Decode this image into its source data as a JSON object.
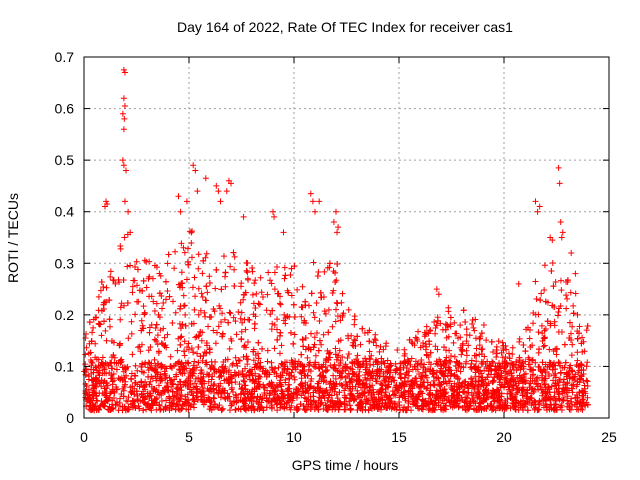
{
  "chart_data": {
    "type": "scatter",
    "title": "Day 164 of 2022, Rate Of TEC Index for receiver cas1",
    "xlabel": "GPS time / hours",
    "ylabel": "ROTI / TECUs",
    "xlim": [
      0,
      25
    ],
    "ylim": [
      0,
      0.7
    ],
    "xticks": [
      0,
      5,
      10,
      15,
      20,
      25
    ],
    "xtick_labels": [
      "0",
      "5",
      "10",
      "15",
      "20",
      "25"
    ],
    "yticks": [
      0,
      0.1,
      0.2,
      0.3,
      0.4,
      0.5,
      0.6,
      0.7
    ],
    "ytick_labels": [
      "0",
      "0.1",
      "0.2",
      "0.3",
      "0.4",
      "0.5",
      "0.6",
      "0.7"
    ],
    "grid": true,
    "marker": "plus",
    "color": "#ff0000",
    "envelope": {
      "x": [
        0,
        0.5,
        1,
        1.5,
        2,
        2.5,
        3,
        3.5,
        4,
        4.5,
        5,
        5.5,
        6,
        6.5,
        7,
        7.5,
        8,
        8.5,
        9,
        9.5,
        10,
        10.5,
        11,
        11.5,
        12,
        12.5,
        13,
        13.5,
        14,
        14.5,
        15,
        15.5,
        16,
        16.5,
        17,
        17.5,
        18,
        18.5,
        19,
        19.5,
        20,
        20.5,
        21,
        21.5,
        22,
        22.5,
        23,
        23.5,
        24
      ],
      "y": [
        0.14,
        0.2,
        0.28,
        0.3,
        0.36,
        0.3,
        0.3,
        0.28,
        0.3,
        0.34,
        0.36,
        0.32,
        0.3,
        0.3,
        0.32,
        0.3,
        0.28,
        0.26,
        0.28,
        0.28,
        0.3,
        0.28,
        0.3,
        0.28,
        0.3,
        0.2,
        0.18,
        0.16,
        0.15,
        0.13,
        0.12,
        0.14,
        0.16,
        0.18,
        0.2,
        0.2,
        0.2,
        0.18,
        0.17,
        0.14,
        0.13,
        0.12,
        0.16,
        0.26,
        0.3,
        0.28,
        0.26,
        0.22,
        0.18
      ]
    },
    "outliers": [
      {
        "x": 1.0,
        "y": 0.41
      },
      {
        "x": 1.05,
        "y": 0.42
      },
      {
        "x": 1.1,
        "y": 0.415
      },
      {
        "x": 1.9,
        "y": 0.675
      },
      {
        "x": 1.95,
        "y": 0.67
      },
      {
        "x": 1.9,
        "y": 0.62
      },
      {
        "x": 1.95,
        "y": 0.605
      },
      {
        "x": 1.85,
        "y": 0.59
      },
      {
        "x": 1.92,
        "y": 0.58
      },
      {
        "x": 1.9,
        "y": 0.56
      },
      {
        "x": 1.85,
        "y": 0.5
      },
      {
        "x": 1.9,
        "y": 0.49
      },
      {
        "x": 2.0,
        "y": 0.48
      },
      {
        "x": 1.95,
        "y": 0.42
      },
      {
        "x": 2.1,
        "y": 0.4
      },
      {
        "x": 2.2,
        "y": 0.36
      },
      {
        "x": 4.5,
        "y": 0.43
      },
      {
        "x": 4.6,
        "y": 0.4
      },
      {
        "x": 4.9,
        "y": 0.42
      },
      {
        "x": 5.2,
        "y": 0.49
      },
      {
        "x": 5.3,
        "y": 0.48
      },
      {
        "x": 5.4,
        "y": 0.44
      },
      {
        "x": 5.8,
        "y": 0.465
      },
      {
        "x": 6.3,
        "y": 0.45
      },
      {
        "x": 6.4,
        "y": 0.44
      },
      {
        "x": 6.5,
        "y": 0.42
      },
      {
        "x": 6.9,
        "y": 0.46
      },
      {
        "x": 7.0,
        "y": 0.455
      },
      {
        "x": 6.8,
        "y": 0.44
      },
      {
        "x": 7.6,
        "y": 0.39
      },
      {
        "x": 9.0,
        "y": 0.4
      },
      {
        "x": 9.05,
        "y": 0.39
      },
      {
        "x": 9.5,
        "y": 0.36
      },
      {
        "x": 10.8,
        "y": 0.435
      },
      {
        "x": 10.9,
        "y": 0.42
      },
      {
        "x": 11.0,
        "y": 0.4
      },
      {
        "x": 11.2,
        "y": 0.42
      },
      {
        "x": 12.0,
        "y": 0.4
      },
      {
        "x": 12.1,
        "y": 0.37
      },
      {
        "x": 12.05,
        "y": 0.36
      },
      {
        "x": 11.9,
        "y": 0.38
      },
      {
        "x": 16.8,
        "y": 0.25
      },
      {
        "x": 16.9,
        "y": 0.24
      },
      {
        "x": 20.7,
        "y": 0.26
      },
      {
        "x": 21.5,
        "y": 0.42
      },
      {
        "x": 21.6,
        "y": 0.4
      },
      {
        "x": 21.7,
        "y": 0.41
      },
      {
        "x": 22.2,
        "y": 0.35
      },
      {
        "x": 22.3,
        "y": 0.345
      },
      {
        "x": 22.6,
        "y": 0.485
      },
      {
        "x": 22.65,
        "y": 0.455
      },
      {
        "x": 22.7,
        "y": 0.38
      },
      {
        "x": 22.8,
        "y": 0.36
      },
      {
        "x": 22.75,
        "y": 0.35
      },
      {
        "x": 23.2,
        "y": 0.32
      },
      {
        "x": 23.4,
        "y": 0.28
      },
      {
        "x": 23.5,
        "y": 0.2
      }
    ]
  }
}
